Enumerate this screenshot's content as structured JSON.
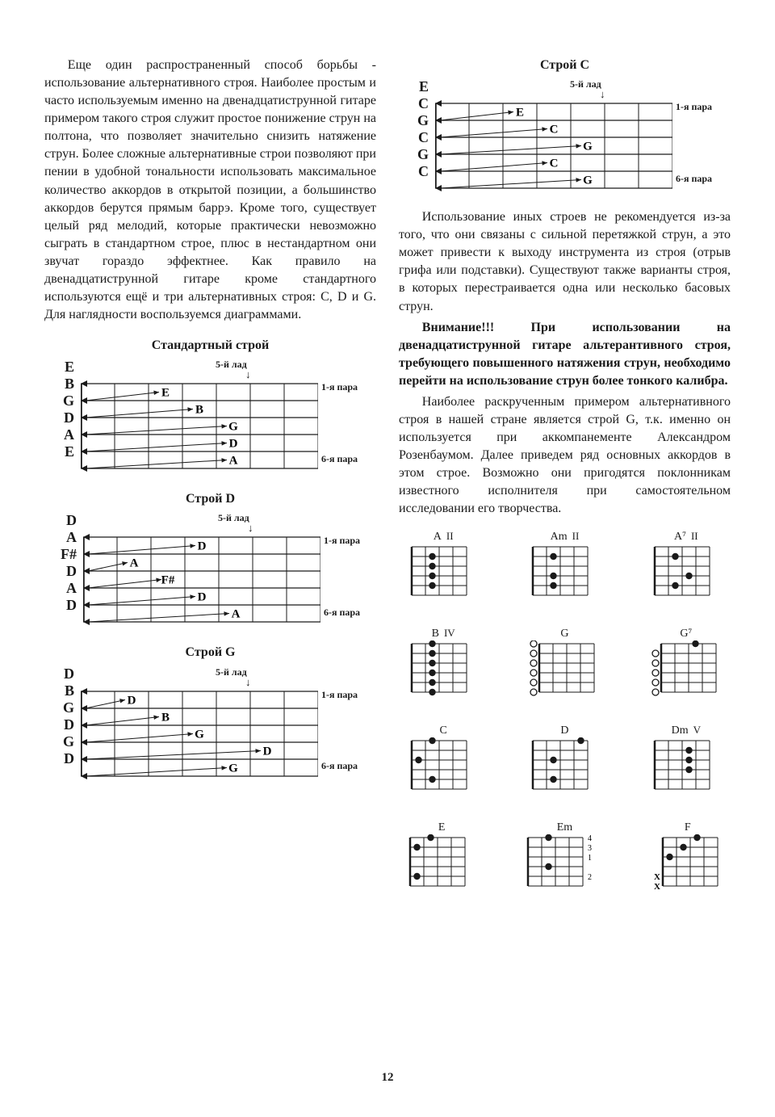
{
  "left": {
    "para1": "Еще один распространенный способ борьбы - использование альтернативного строя. Наиболее простым и часто используемым именно на двенадцатиструнной гитаре примером такого строя служит простое понижение струн на полтона, что позволяет значительно снизить натяжение струн. Более сложные альтернативные строи позволяют при пении в удобной тональности использовать максимальное количество аккордов в открытой позиции, а большинство аккордов берутся прямым баррэ. Кроме того, существует целый ряд мелодий, которые практически невозможно сыграть в стандартном строе, плюс в нестандартном они звучат гораздо эффектнее. Как правило на двенадцатиструнной гитаре кроме стандартного используются ещё и три альтернативных строя: C, D и G. Для наглядности воспользуемся диаграммами."
  },
  "right": {
    "para1": "Использование иных строев не рекомендуется из-за того, что они связаны с сильной перетяжкой струн, а это может привести к выходу инструмента из строя (отрыв грифа или подставки). Существуют также варианты строя, в которых перестраивается одна или несколько басовых струн.",
    "para2_bold": "Внимание!!! При использовании на двенадцатиструнной гитаре альтерантивного строя, требующего повышенного натяжения струн, необходимо перейти на использование струн более тонкого калибра.",
    "para3": "Наиболее раскрученным примером альтернативного строя в нашей стране является строй G, т.к. именно он используется при аккомпанементе Александром Розенбаумом. Далее приведем ряд основных аккордов в этом строе. Возможно они пригодятся поклонникам известного исполнителя при самостоятельном исследовании его творчества."
  },
  "fret_label": "5-й лад",
  "pair1": "1-я пара",
  "pair6": "6-я пара",
  "tunings": {
    "standard": {
      "title": "Стандартный строй",
      "open": [
        "E",
        "B",
        "G",
        "D",
        "A",
        "E"
      ],
      "fifth": [
        "E",
        "B",
        "G",
        "D",
        "A"
      ],
      "ff": [
        3,
        4,
        5,
        5,
        5
      ]
    },
    "d": {
      "title": "Строй D",
      "open": [
        "D",
        "A",
        "F#",
        "D",
        "A",
        "D"
      ],
      "fifth": [
        "D",
        "A",
        "F#",
        "D",
        "A"
      ],
      "ff": [
        4,
        2,
        3,
        4,
        5
      ]
    },
    "g": {
      "title": "Строй G",
      "open": [
        "D",
        "B",
        "G",
        "D",
        "G",
        "D"
      ],
      "fifth": [
        "D",
        "B",
        "G",
        "D",
        "G"
      ],
      "ff": [
        2,
        3,
        4,
        6,
        5
      ]
    },
    "c": {
      "title": "Строй C",
      "open": [
        "E",
        "C",
        "G",
        "C",
        "G",
        "C"
      ],
      "fifth": [
        "E",
        "C",
        "G",
        "C",
        "G"
      ],
      "ff": [
        3,
        4,
        5,
        4,
        5
      ]
    }
  },
  "chords": [
    {
      "name": "A",
      "pos": "II",
      "dots": [
        [
          2,
          2
        ],
        [
          2,
          3
        ],
        [
          2,
          4
        ],
        [
          2,
          5
        ]
      ],
      "open": [],
      "mute": []
    },
    {
      "name": "Am",
      "pos": "II",
      "dots": [
        [
          2,
          2
        ],
        [
          2,
          4
        ],
        [
          2,
          5
        ]
      ],
      "open": [],
      "mute": []
    },
    {
      "name": "A⁷",
      "pos": "II",
      "dots": [
        [
          2,
          2
        ],
        [
          3,
          4
        ],
        [
          2,
          5
        ]
      ],
      "open": [],
      "mute": []
    },
    {
      "name": "B",
      "pos": "IV",
      "dots": [
        [
          2,
          1
        ],
        [
          2,
          2
        ],
        [
          2,
          3
        ],
        [
          2,
          4
        ],
        [
          2,
          5
        ],
        [
          2,
          6
        ]
      ],
      "open": [],
      "mute": []
    },
    {
      "name": "G",
      "pos": "",
      "dots": [],
      "open": [
        1,
        2,
        3,
        4,
        5,
        6
      ],
      "mute": []
    },
    {
      "name": "G⁷",
      "pos": "",
      "dots": [
        [
          3,
          1
        ]
      ],
      "open": [
        2,
        3,
        4,
        5,
        6
      ],
      "mute": []
    },
    {
      "name": "C",
      "pos": "",
      "dots": [
        [
          2,
          1
        ],
        [
          1,
          3
        ],
        [
          2,
          5
        ]
      ],
      "open": [],
      "mute": []
    },
    {
      "name": "D",
      "pos": "",
      "dots": [
        [
          4,
          1
        ],
        [
          2,
          3
        ],
        [
          2,
          5
        ]
      ],
      "open": [],
      "mute": []
    },
    {
      "name": "Dm",
      "pos": "V",
      "dots": [
        [
          3,
          2
        ],
        [
          3,
          3
        ],
        [
          3,
          4
        ]
      ],
      "open": [],
      "mute": []
    },
    {
      "name": "E",
      "pos": "",
      "dots": [
        [
          2,
          1
        ],
        [
          1,
          2
        ],
        [
          1,
          5
        ]
      ],
      "open": [],
      "mute": []
    },
    {
      "name": "Em",
      "pos": "",
      "dots": [
        [
          2,
          1
        ],
        [
          2,
          4
        ]
      ],
      "open": [],
      "mute": [],
      "rightNums": [
        "4",
        "3",
        "1",
        "",
        "2"
      ]
    },
    {
      "name": "F",
      "pos": "",
      "dots": [
        [
          3,
          1
        ],
        [
          1,
          3
        ],
        [
          2,
          2
        ]
      ],
      "open": [],
      "mute": [
        5,
        6
      ]
    }
  ],
  "colors": {
    "line": "#1a1a1a",
    "bg": "#ffffff"
  },
  "page_num": "12"
}
